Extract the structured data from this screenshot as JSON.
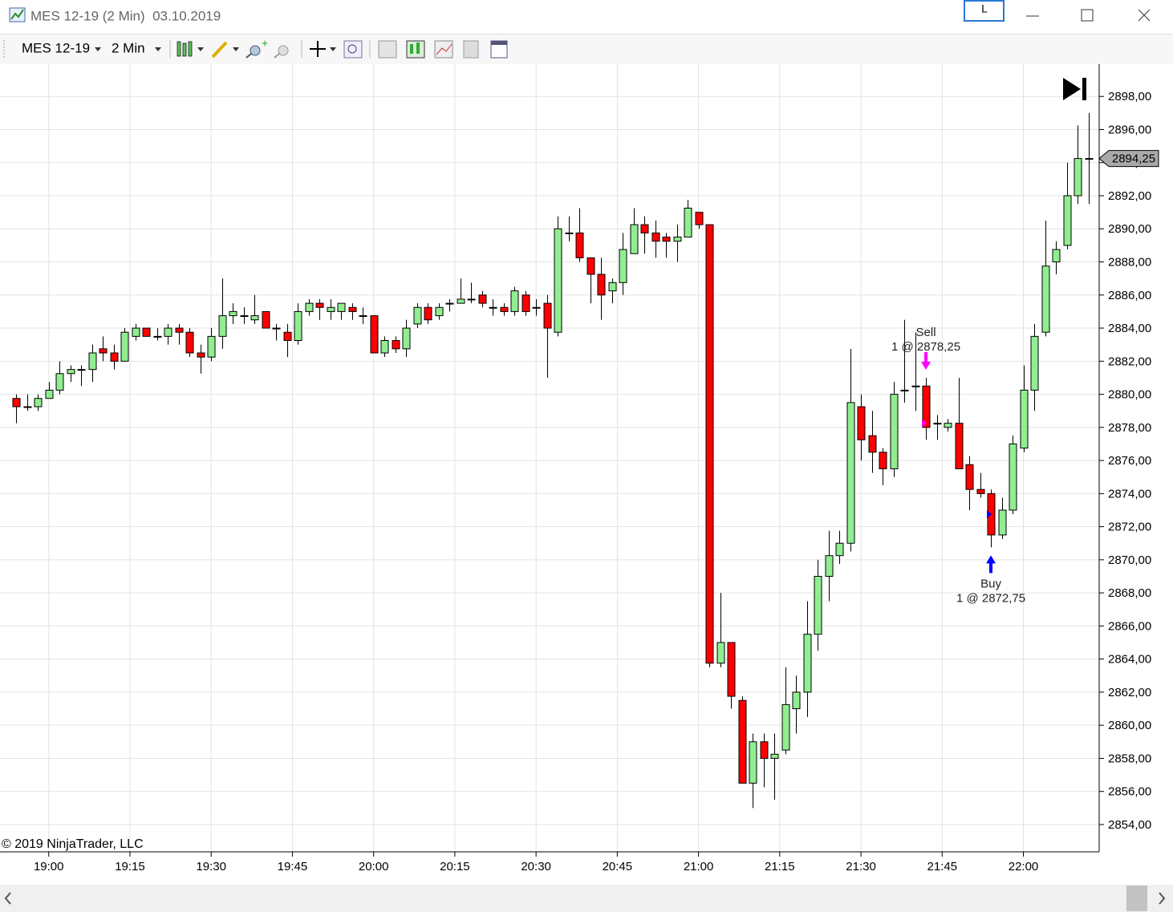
{
  "window": {
    "title": "MES 12-19 (2 Min)  03.10.2019",
    "button": "L"
  },
  "toolbar": {
    "instrument": "MES 12-19",
    "interval": "2 Min"
  },
  "chart_data": {
    "type": "candlestick",
    "copyright": "© 2019 NinjaTrader, LLC",
    "x": [
      "18:54",
      "18:56",
      "18:58",
      "19:00",
      "19:02",
      "19:04",
      "19:06",
      "19:08",
      "19:10",
      "19:12",
      "19:14",
      "19:16",
      "19:18",
      "19:20",
      "19:22",
      "19:24",
      "19:26",
      "19:28",
      "19:30",
      "19:32",
      "19:34",
      "19:36",
      "19:38",
      "19:40",
      "19:42",
      "19:44",
      "19:46",
      "19:48",
      "19:50",
      "19:52",
      "19:54",
      "19:56",
      "19:58",
      "20:00",
      "20:02",
      "20:04",
      "20:06",
      "20:08",
      "20:10",
      "20:12",
      "20:14",
      "20:16",
      "20:18",
      "20:20",
      "20:22",
      "20:24",
      "20:26",
      "20:28",
      "20:30",
      "20:32",
      "20:34",
      "20:36",
      "20:38",
      "20:40",
      "20:42",
      "20:44",
      "20:46",
      "20:48",
      "20:50",
      "20:52",
      "20:54",
      "20:56",
      "20:58",
      "21:00",
      "21:02",
      "21:04",
      "21:06",
      "21:08",
      "21:10",
      "21:12",
      "21:14",
      "21:16",
      "21:18",
      "21:20",
      "21:22",
      "21:24",
      "21:26",
      "21:28",
      "21:30",
      "21:32",
      "21:34",
      "21:36",
      "21:38",
      "21:40",
      "21:42",
      "21:44",
      "21:46",
      "21:48",
      "21:50",
      "21:52",
      "21:54",
      "21:56",
      "21:58",
      "22:00",
      "22:02",
      "22:04",
      "22:06",
      "22:08",
      "22:10",
      "22:12"
    ],
    "open": [
      2879.75,
      2879.25,
      2879.25,
      2879.75,
      2880.25,
      2881.25,
      2881.5,
      2881.5,
      2882.75,
      2882.5,
      2882,
      2883.5,
      2884,
      2883.5,
      2883.5,
      2884,
      2883.75,
      2882.5,
      2882.25,
      2883.5,
      2884.75,
      2884.75,
      2884.5,
      2885,
      2884,
      2883.75,
      2883.25,
      2885,
      2885.5,
      2885,
      2885,
      2885.25,
      2884.75,
      2884.75,
      2882.5,
      2883.25,
      2882.75,
      2884.25,
      2885.25,
      2884.75,
      2885.5,
      2885.5,
      2885.75,
      2886,
      2885.25,
      2885.25,
      2885,
      2886,
      2885.25,
      2885.5,
      2883.75,
      2889.75,
      2889.75,
      2888.25,
      2887.25,
      2886.25,
      2886.75,
      2888.5,
      2890.25,
      2889.75,
      2889.5,
      2889.25,
      2889.5,
      2891,
      2890.25,
      2863.75,
      2865,
      2861.5,
      2856.5,
      2859,
      2858,
      2858.5,
      2861,
      2862,
      2865.5,
      2869,
      2870.25,
      2871,
      2879.25,
      2877.5,
      2876.5,
      2875.5,
      2880.25,
      2880.5,
      2880.5,
      2878.25,
      2878,
      2878.25,
      2875.75,
      2874.25,
      2874,
      2871.5,
      2873,
      2876.75,
      2880.25,
      2883.75,
      2888,
      2889,
      2892,
      2894.25
    ],
    "high": [
      2880,
      2880,
      2880,
      2880.75,
      2882,
      2881.75,
      2881.75,
      2883,
      2883.5,
      2883,
      2884,
      2884.25,
      2884,
      2884,
      2884.25,
      2884.25,
      2884,
      2883,
      2884,
      2887,
      2885.5,
      2885.25,
      2886,
      2885,
      2884.25,
      2884.25,
      2885.5,
      2885.75,
      2885.75,
      2885.75,
      2885.5,
      2885.5,
      2885.25,
      2884.75,
      2883.5,
      2883.5,
      2884.5,
      2885.5,
      2885.5,
      2885.5,
      2885.75,
      2887,
      2886.75,
      2886.25,
      2885.75,
      2885.5,
      2886.5,
      2886.25,
      2885.75,
      2886,
      2890.75,
      2890.75,
      2891.25,
      2888.25,
      2888.25,
      2887,
      2889.75,
      2891.25,
      2890.75,
      2890.5,
      2889.75,
      2890.25,
      2891.75,
      2891,
      2890.25,
      2868,
      2865,
      2861.75,
      2859.5,
      2859.5,
      2859.5,
      2863.5,
      2863,
      2867.5,
      2870,
      2871.75,
      2871.75,
      2882.75,
      2880,
      2879,
      2876.75,
      2880.75,
      2884.5,
      2883.75,
      2881,
      2878.75,
      2878.5,
      2881,
      2876.25,
      2875.25,
      2874.25,
      2873.75,
      2877.5,
      2881.75,
      2884.25,
      2890.5,
      2889.25,
      2894,
      2896.25,
      2897
    ],
    "low": [
      2878.25,
      2879,
      2879,
      2879.75,
      2880,
      2880.75,
      2880.5,
      2880.75,
      2882,
      2881.5,
      2882,
      2883.25,
      2883.5,
      2883.25,
      2883,
      2883,
      2882.25,
      2881.25,
      2882,
      2882.75,
      2884.25,
      2884.25,
      2884.25,
      2884,
      2883.25,
      2882.25,
      2883,
      2884.75,
      2884.5,
      2884.5,
      2884.5,
      2884.5,
      2884.25,
      2882.5,
      2882.25,
      2882.5,
      2882.25,
      2884,
      2884.25,
      2884.5,
      2885,
      2885.5,
      2885.5,
      2885.25,
      2884.75,
      2884.75,
      2884.75,
      2884.75,
      2884.75,
      2881,
      2883.5,
      2889.25,
      2888,
      2885.5,
      2884.5,
      2885.5,
      2886,
      2888.5,
      2888.5,
      2888.25,
      2888.25,
      2888,
      2889.5,
      2890,
      2863.5,
      2863.5,
      2861,
      2856.5,
      2855,
      2856.25,
      2855.5,
      2858.25,
      2859.5,
      2860.5,
      2864.5,
      2867.5,
      2869.75,
      2870.5,
      2876,
      2875.25,
      2874.5,
      2875,
      2879.5,
      2879,
      2877.25,
      2877.25,
      2877.75,
      2875.5,
      2873,
      2873.75,
      2870.75,
      2871.25,
      2872.75,
      2876.5,
      2879,
      2883.5,
      2887.25,
      2888.75,
      2891.5,
      2891.5
    ],
    "close": [
      2879.25,
      2879.25,
      2879.75,
      2880.25,
      2881.25,
      2881.5,
      2881.5,
      2882.5,
      2882.5,
      2882,
      2883.75,
      2884,
      2883.5,
      2883.5,
      2884,
      2883.75,
      2882.5,
      2882.25,
      2883.5,
      2884.75,
      2885,
      2884.75,
      2884.75,
      2884,
      2884,
      2883.25,
      2885,
      2885.5,
      2885.25,
      2885.25,
      2885.5,
      2885,
      2884.75,
      2882.5,
      2883.25,
      2882.75,
      2884,
      2885.25,
      2884.5,
      2885.25,
      2885.5,
      2885.75,
      2885.75,
      2885.5,
      2885.25,
      2885,
      2886.25,
      2885,
      2885.25,
      2884,
      2890,
      2889.75,
      2888.25,
      2887.25,
      2886,
      2886.75,
      2888.75,
      2890.25,
      2889.75,
      2889.25,
      2889.25,
      2889.5,
      2891.25,
      2890.25,
      2863.75,
      2865,
      2861.75,
      2856.5,
      2859,
      2858,
      2858.25,
      2861.25,
      2862,
      2865.5,
      2869,
      2870.25,
      2871,
      2879.5,
      2877.25,
      2876.5,
      2875.5,
      2880,
      2880.25,
      2880.5,
      2878,
      2878.25,
      2878.25,
      2875.5,
      2874.25,
      2874,
      2871.5,
      2873,
      2877,
      2880.25,
      2883.5,
      2887.75,
      2888.75,
      2892,
      2894.25,
      2894.25
    ],
    "up_color": "#90ee90",
    "down_color": "#ff0000",
    "xlim": [
      "18:51",
      "22:14"
    ],
    "xticks": [
      "19:00",
      "19:15",
      "19:30",
      "19:45",
      "20:00",
      "20:15",
      "20:30",
      "20:45",
      "21:00",
      "21:15",
      "21:30",
      "21:45",
      "22:00"
    ],
    "ylim": [
      2852.35,
      2899.95
    ],
    "yticks": [
      {
        "value": 2854,
        "label": "2854,00"
      },
      {
        "value": 2856,
        "label": "2856,00"
      },
      {
        "value": 2858,
        "label": "2858,00"
      },
      {
        "value": 2860,
        "label": "2860,00"
      },
      {
        "value": 2862,
        "label": "2862,00"
      },
      {
        "value": 2864,
        "label": "2864,00"
      },
      {
        "value": 2866,
        "label": "2866,00"
      },
      {
        "value": 2868,
        "label": "2868,00"
      },
      {
        "value": 2870,
        "label": "2870,00"
      },
      {
        "value": 2872,
        "label": "2872,00"
      },
      {
        "value": 2874,
        "label": "2874,00"
      },
      {
        "value": 2876,
        "label": "2876,00"
      },
      {
        "value": 2878,
        "label": "2878,00"
      },
      {
        "value": 2880,
        "label": "2880,00"
      },
      {
        "value": 2882,
        "label": "2882,00"
      },
      {
        "value": 2884,
        "label": "2884,00"
      },
      {
        "value": 2886,
        "label": "2886,00"
      },
      {
        "value": 2888,
        "label": "2888,00"
      },
      {
        "value": 2890,
        "label": "2890,00"
      },
      {
        "value": 2892,
        "label": "2892,00"
      },
      {
        "value": 2894,
        "label": "2894,00"
      },
      {
        "value": 2896,
        "label": "2896,00"
      },
      {
        "value": 2898,
        "label": "2898,00"
      }
    ],
    "grid": true,
    "last_price": {
      "value": 2894.25,
      "label": "2894,25"
    },
    "annotations": [
      {
        "action": "Sell",
        "text": "1 @ 2878,25",
        "price": 2878.25,
        "x": "21:42",
        "color": "#ff00ff"
      },
      {
        "action": "Buy",
        "text": "1 @ 2872,75",
        "price": 2872.75,
        "x": "21:54",
        "color": "#0000ff"
      }
    ]
  }
}
